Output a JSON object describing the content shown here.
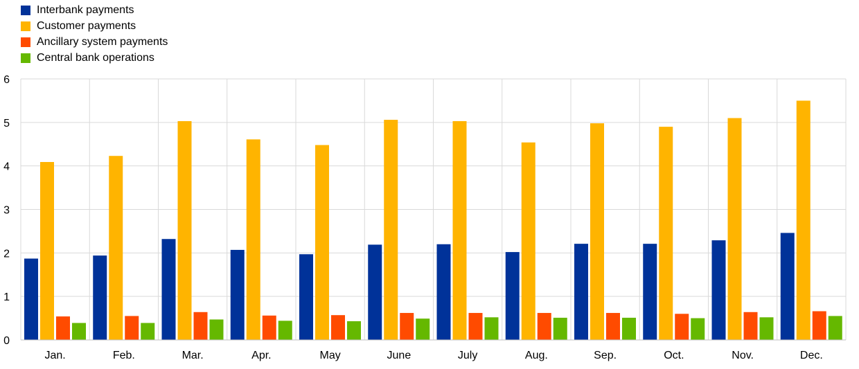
{
  "chart_data": {
    "type": "bar",
    "title": "",
    "xlabel": "",
    "ylabel": "",
    "ylim": [
      0,
      6
    ],
    "yticks": [
      0,
      1,
      2,
      3,
      4,
      5,
      6
    ],
    "grid": true,
    "legend_position": "top-left",
    "categories": [
      "Jan.",
      "Feb.",
      "Mar.",
      "Apr.",
      "May",
      "June",
      "July",
      "Aug.",
      "Sep.",
      "Oct.",
      "Nov.",
      "Dec."
    ],
    "series": [
      {
        "name": "Interbank payments",
        "color": "#003299",
        "values": [
          1.87,
          1.94,
          2.32,
          2.07,
          1.97,
          2.19,
          2.2,
          2.02,
          2.21,
          2.21,
          2.29,
          2.46
        ]
      },
      {
        "name": "Customer payments",
        "color": "#ffb400",
        "values": [
          4.09,
          4.23,
          5.03,
          4.61,
          4.48,
          5.06,
          5.03,
          4.54,
          4.98,
          4.9,
          5.1,
          5.5
        ]
      },
      {
        "name": "Ancillary system payments",
        "color": "#ff4b00",
        "values": [
          0.54,
          0.55,
          0.64,
          0.56,
          0.57,
          0.62,
          0.62,
          0.62,
          0.62,
          0.6,
          0.64,
          0.66
        ]
      },
      {
        "name": "Central bank operations",
        "color": "#65b800",
        "values": [
          0.39,
          0.39,
          0.47,
          0.44,
          0.43,
          0.49,
          0.52,
          0.51,
          0.51,
          0.5,
          0.52,
          0.55
        ]
      }
    ]
  }
}
